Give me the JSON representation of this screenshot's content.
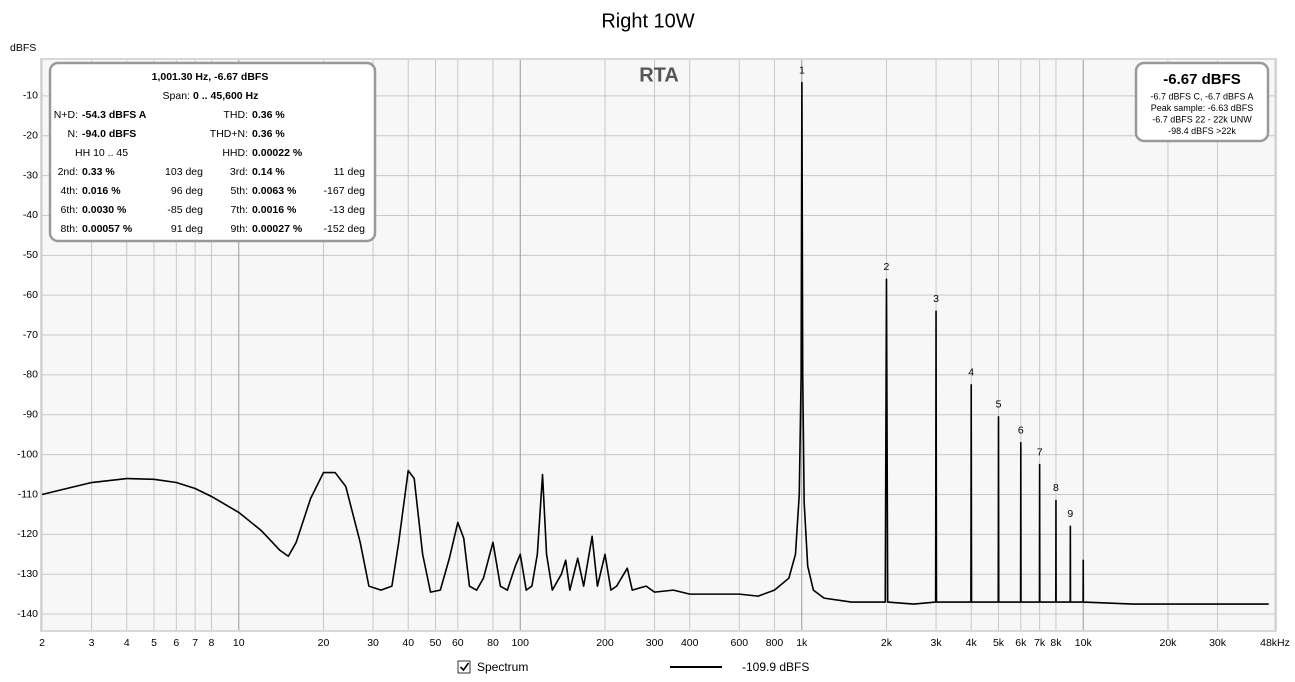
{
  "chart_data": {
    "type": "line",
    "title": "Right 10W",
    "y_label": "dBFS",
    "annotation": "RTA",
    "xscale": "log",
    "grid": true,
    "xlim": [
      2,
      48000
    ],
    "ylim": [
      -144,
      -1
    ],
    "yticks": [
      -10,
      -20,
      -30,
      -40,
      -50,
      -60,
      -70,
      -80,
      -90,
      -100,
      -110,
      -120,
      -130,
      -140
    ],
    "xticks": [
      2,
      3,
      4,
      5,
      6,
      7,
      8,
      10,
      20,
      30,
      40,
      50,
      60,
      80,
      100,
      200,
      300,
      400,
      600,
      800,
      {
        "value": 1000,
        "label": "1k"
      },
      {
        "value": 2000,
        "label": "2k"
      },
      {
        "value": 3000,
        "label": "3k"
      },
      {
        "value": 4000,
        "label": "4k"
      },
      {
        "value": 5000,
        "label": "5k"
      },
      {
        "value": 6000,
        "label": "6k"
      },
      {
        "value": 7000,
        "label": "7k"
      },
      {
        "value": 8000,
        "label": "8k"
      },
      {
        "value": 10000,
        "label": "10k"
      },
      {
        "value": 20000,
        "label": "20k"
      },
      {
        "value": 30000,
        "label": "30k"
      },
      {
        "value": 48000,
        "label": "48kHz"
      }
    ],
    "series": [
      {
        "name": "Spectrum",
        "color": "#000000",
        "legend_value": "-109.9 dBFS",
        "x": [
          2,
          3,
          4,
          5,
          6,
          7,
          8,
          10,
          12,
          14,
          15,
          16,
          18,
          20,
          22,
          24,
          27,
          29,
          32,
          35,
          37,
          40,
          42,
          45,
          48,
          52,
          56,
          60,
          63,
          66,
          70,
          74,
          80,
          85,
          90,
          96,
          100,
          105,
          110,
          115,
          120,
          124,
          130,
          140,
          145,
          150,
          160,
          168,
          180,
          188,
          200,
          210,
          220,
          240,
          250,
          280,
          300,
          350,
          400,
          500,
          600,
          700,
          800,
          900,
          950,
          980,
          995,
          1001.3,
          1008,
          1020,
          1050,
          1100,
          1200,
          1500,
          1980,
          2000,
          2020,
          2500,
          2990,
          3000,
          3010,
          3500,
          3990,
          4000,
          4010,
          4500,
          4990,
          5000,
          5010,
          5500,
          5990,
          6000,
          6010,
          6500,
          6990,
          7000,
          7010,
          7500,
          7990,
          8000,
          8010,
          8500,
          8990,
          9000,
          9010,
          9500,
          9990,
          10000,
          10010,
          15000,
          20000,
          30000,
          45600
        ],
        "values": [
          -110,
          -107,
          -106,
          -106.2,
          -107,
          -108.5,
          -110.5,
          -114.5,
          -119,
          -124,
          -125.5,
          -122,
          -111,
          -104.5,
          -104.5,
          -108,
          -122,
          -133,
          -134,
          -133,
          -122,
          -104,
          -106,
          -125,
          -134.5,
          -134,
          -126,
          -117,
          -121,
          -133,
          -134,
          -131,
          -122,
          -133,
          -134,
          -128,
          -125,
          -134,
          -133,
          -125,
          -105,
          -125,
          -134,
          -130,
          -126.5,
          -134,
          -126,
          -133,
          -120.5,
          -133,
          -125,
          -134,
          -133,
          -128.5,
          -134,
          -133,
          -134.5,
          -134,
          -135,
          -135,
          -135,
          -135.5,
          -134,
          -131,
          -125,
          -110,
          -80,
          -6.67,
          -80,
          -112,
          -128,
          -134,
          -136,
          -137,
          -137,
          -56,
          -137,
          -137.5,
          -137,
          -64,
          -137,
          -137,
          -137,
          -82.5,
          -137,
          -137,
          -137,
          -90.5,
          -137,
          -137,
          -137,
          -97,
          -137,
          -137,
          -137,
          -102.5,
          -137,
          -137,
          -137,
          -111.5,
          -137,
          -137,
          -137,
          -118,
          -137,
          -137,
          -137,
          -126.5,
          -137,
          -137.5,
          -137.5,
          -137.5,
          -137.5
        ]
      }
    ],
    "harmonic_labels": [
      {
        "label": "1",
        "x": 1001.3,
        "y": -6.67
      },
      {
        "label": "2",
        "x": 2000,
        "y": -56
      },
      {
        "label": "3",
        "x": 3000,
        "y": -64
      },
      {
        "label": "4",
        "x": 4000,
        "y": -82.5
      },
      {
        "label": "5",
        "x": 5000,
        "y": -90.5
      },
      {
        "label": "6",
        "x": 6000,
        "y": -97
      },
      {
        "label": "7",
        "x": 7000,
        "y": -102.5
      },
      {
        "label": "8",
        "x": 8000,
        "y": -111.5
      },
      {
        "label": "9",
        "x": 9000,
        "y": -118
      }
    ]
  },
  "readout": {
    "header": "1,001.30 Hz, -6.67 dBFS",
    "span_label": "Span:",
    "span": "0 .. 45,600 Hz",
    "rows": [
      [
        {
          "label": "N+D:",
          "value": "-54.3 dBFS A"
        },
        {
          "label": "THD:",
          "value": "0.36 %"
        }
      ],
      [
        {
          "label": "N:",
          "value": "-94.0 dBFS"
        },
        {
          "label": "THD+N:",
          "value": "0.36 %"
        }
      ],
      [
        {
          "label": "HH 10 .. 45"
        },
        {
          "label": "HHD:",
          "value": "0.00022 %"
        }
      ],
      [
        {
          "label": "2nd:",
          "value": "0.33 %",
          "deg": "103 deg"
        },
        {
          "label": "3rd:",
          "value": "0.14 %",
          "deg": "11 deg"
        }
      ],
      [
        {
          "label": "4th:",
          "value": "0.016 %",
          "deg": "96 deg"
        },
        {
          "label": "5th:",
          "value": "0.0063 %",
          "deg": "-167 deg"
        }
      ],
      [
        {
          "label": "6th:",
          "value": "0.0030 %",
          "deg": "-85 deg"
        },
        {
          "label": "7th:",
          "value": "0.0016 %",
          "deg": "-13 deg"
        }
      ],
      [
        {
          "label": "8th:",
          "value": "0.00057 %",
          "deg": "91 deg"
        },
        {
          "label": "9th:",
          "value": "0.00027 %",
          "deg": "-152 deg"
        }
      ]
    ]
  },
  "level_box": {
    "main": "-6.67 dBFS",
    "lines": [
      "-6.7 dBFS C, -6.7 dBFS A",
      "Peak sample: -6.63 dBFS",
      "-6.7 dBFS 22 - 22k UNW",
      "-98.4 dBFS >22k"
    ]
  }
}
